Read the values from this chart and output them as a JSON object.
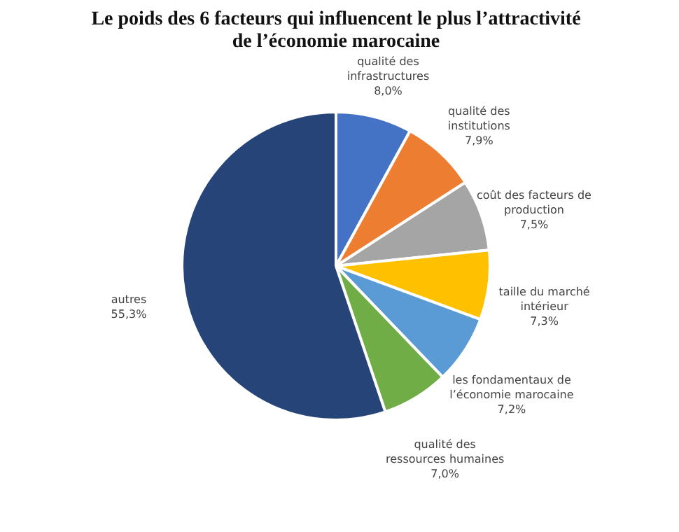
{
  "chart_data": {
    "type": "pie",
    "title": "Le poids des 6 facteurs qui influencent le plus l’attractivité de l’économie marocaine",
    "categories": [
      "qualité des infrastructures",
      "qualité des institutions",
      "coût des facteurs de production",
      "taille du marché intérieur",
      "les fondamentaux de l’économie marocaine",
      "qualité des ressources humaines",
      "autres"
    ],
    "values": [
      8.0,
      7.9,
      7.5,
      7.3,
      7.2,
      7.0,
      55.3
    ],
    "value_labels": [
      "8,0%",
      "7,9%",
      "7,5%",
      "7,3%",
      "7,2%",
      "7,0%",
      "55,3%"
    ],
    "colors": [
      "#4472c4",
      "#ed7d31",
      "#a5a5a5",
      "#ffc000",
      "#5b9bd5",
      "#70ad47",
      "#264478"
    ],
    "legend": false
  }
}
